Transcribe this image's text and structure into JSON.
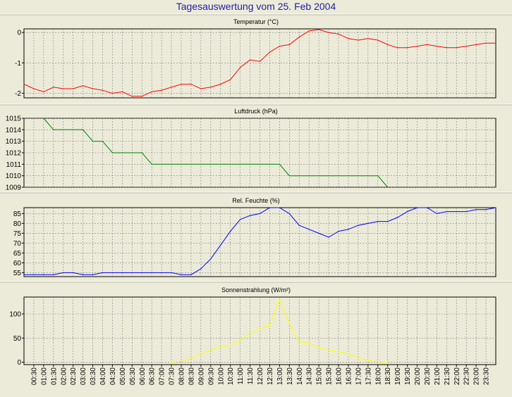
{
  "title": "Tagesauswertung vom 25. Feb 2004",
  "x_labels": [
    "00:30",
    "01:00",
    "01:30",
    "02:00",
    "02:30",
    "03:00",
    "03:30",
    "04:00",
    "04:30",
    "05:00",
    "05:30",
    "06:00",
    "06:30",
    "07:00",
    "07:30",
    "08:00",
    "08:30",
    "09:00",
    "09:30",
    "10:00",
    "10:30",
    "11:00",
    "11:30",
    "12:00",
    "12:30",
    "13:00",
    "13:30",
    "14:00",
    "14:30",
    "15:00",
    "15:30",
    "16:00",
    "16:30",
    "17:00",
    "17:30",
    "18:00",
    "18:30",
    "19:00",
    "19:30",
    "20:00",
    "20:30",
    "21:00",
    "21:30",
    "22:00",
    "22:30",
    "23:00",
    "23:30"
  ],
  "chart_data": [
    {
      "type": "line",
      "title": "Temperatur (°C)",
      "color": "#ff0000",
      "ylim": [
        -2.15,
        0.12
      ],
      "yticks": [
        0,
        -1,
        -2
      ],
      "grid": true,
      "x": [
        "00:00",
        "00:30",
        "01:00",
        "01:30",
        "02:00",
        "02:30",
        "03:00",
        "03:30",
        "04:00",
        "04:30",
        "05:00",
        "05:30",
        "06:00",
        "06:30",
        "07:00",
        "07:30",
        "08:00",
        "08:30",
        "09:00",
        "09:30",
        "10:00",
        "10:30",
        "11:00",
        "11:30",
        "12:00",
        "12:30",
        "13:00",
        "13:30",
        "14:00",
        "14:30",
        "15:00",
        "15:30",
        "16:00",
        "16:30",
        "17:00",
        "17:30",
        "18:00",
        "18:30",
        "19:00",
        "19:30",
        "20:00",
        "20:30",
        "21:00",
        "21:30",
        "22:00",
        "22:30",
        "23:00",
        "23:30",
        "24:00"
      ],
      "values": [
        -1.7,
        -1.85,
        -1.95,
        -1.8,
        -1.85,
        -1.85,
        -1.75,
        -1.85,
        -1.9,
        -2.0,
        -1.95,
        -2.1,
        -2.1,
        -1.95,
        -1.9,
        -1.8,
        -1.7,
        -1.7,
        -1.85,
        -1.8,
        -1.7,
        -1.55,
        -1.15,
        -0.9,
        -0.95,
        -0.65,
        -0.45,
        -0.4,
        -0.15,
        0.05,
        0.1,
        0.0,
        -0.05,
        -0.2,
        -0.25,
        -0.2,
        -0.25,
        -0.4,
        -0.5,
        -0.5,
        -0.45,
        -0.4,
        -0.45,
        -0.5,
        -0.5,
        -0.45,
        -0.4,
        -0.35,
        -0.35
      ]
    },
    {
      "type": "line",
      "title": "Luftdruck (hPa)",
      "color": "#008000",
      "ylim": [
        1009,
        1015
      ],
      "yticks": [
        1015,
        1014,
        1013,
        1012,
        1011,
        1010,
        1009
      ],
      "grid": true,
      "x": [
        "01:00",
        "01:30",
        "03:00",
        "03:30",
        "04:00",
        "04:30",
        "06:00",
        "06:30",
        "13:00",
        "13:30",
        "18:00",
        "18:30"
      ],
      "values": [
        1015,
        1014,
        1014,
        1013,
        1013,
        1012,
        1012,
        1011,
        1011,
        1010,
        1010,
        1009
      ]
    },
    {
      "type": "line",
      "title": "Rel. Feuchte (%)",
      "color": "#0000ff",
      "ylim": [
        53,
        88
      ],
      "yticks": [
        85,
        80,
        75,
        70,
        65,
        60,
        55
      ],
      "grid": true,
      "x": [
        "00:00",
        "00:30",
        "01:00",
        "01:30",
        "02:00",
        "02:30",
        "03:00",
        "03:30",
        "04:00",
        "04:30",
        "05:00",
        "05:30",
        "06:00",
        "06:30",
        "07:00",
        "07:30",
        "08:00",
        "08:30",
        "09:00",
        "09:30",
        "10:00",
        "10:30",
        "11:00",
        "11:30",
        "12:00",
        "12:30",
        "13:00",
        "13:30",
        "14:00",
        "14:30",
        "15:00",
        "15:30",
        "16:00",
        "16:30",
        "17:00",
        "17:30",
        "18:00",
        "18:30",
        "19:00",
        "19:30",
        "20:00",
        "20:30",
        "21:00",
        "21:30",
        "22:00",
        "22:30",
        "23:00",
        "23:30",
        "24:00"
      ],
      "values": [
        54,
        54,
        54,
        54,
        55,
        55,
        54,
        54,
        55,
        55,
        55,
        55,
        55,
        55,
        55,
        55,
        54,
        54,
        57,
        62,
        69,
        76,
        82,
        84,
        85,
        88,
        88,
        85,
        79,
        77,
        75,
        73,
        76,
        77,
        79,
        80,
        81,
        81,
        83,
        86,
        88,
        88,
        85,
        86,
        86,
        86,
        87,
        87,
        88
      ]
    },
    {
      "type": "line",
      "title": "Sonnenstrahlung (W/m²)",
      "color": "#ffff00",
      "ylim": [
        -5,
        135
      ],
      "yticks": [
        100,
        50,
        0
      ],
      "grid": true,
      "x": [
        "07:30",
        "08:00",
        "08:30",
        "09:00",
        "09:30",
        "10:00",
        "10:30",
        "11:00",
        "11:30",
        "12:00",
        "12:30",
        "13:00",
        "13:30",
        "14:00",
        "14:30",
        "15:00",
        "15:30",
        "16:00",
        "16:30",
        "17:00",
        "17:30",
        "18:00",
        "18:30"
      ],
      "values": [
        0,
        2,
        8,
        18,
        25,
        32,
        35,
        45,
        60,
        70,
        75,
        130,
        80,
        42,
        40,
        30,
        25,
        22,
        17,
        9,
        4,
        1,
        0
      ]
    }
  ]
}
